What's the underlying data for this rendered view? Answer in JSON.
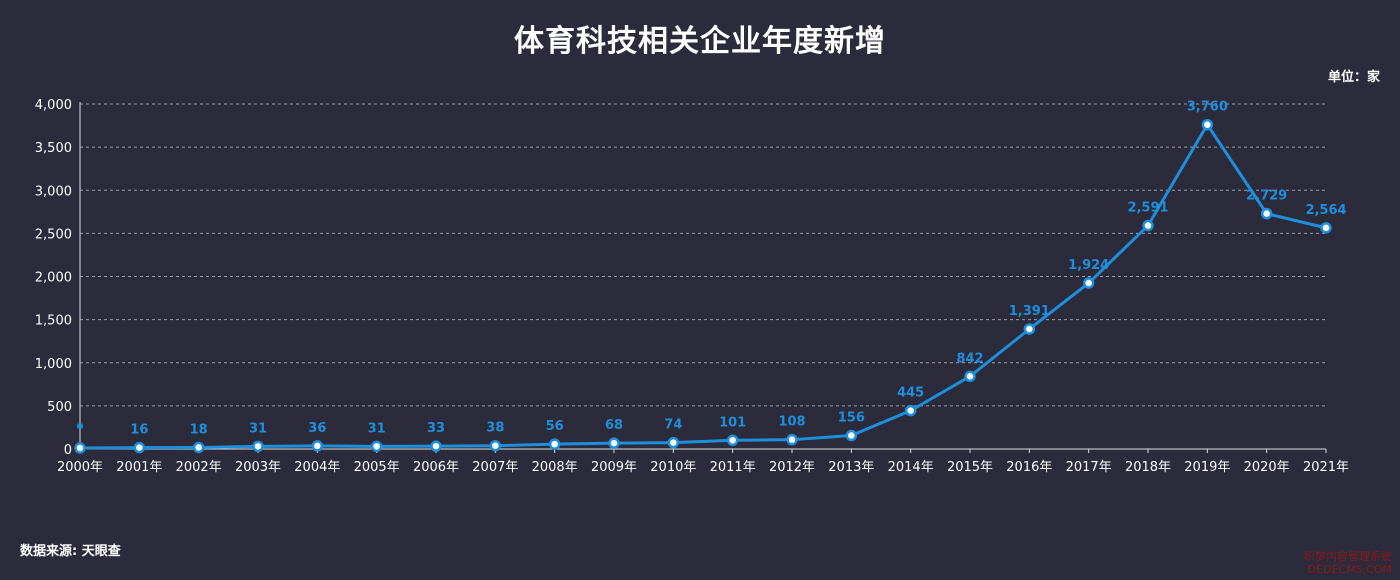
{
  "title": "体育科技相关企业年度新增",
  "unit": "单位：家",
  "source": "数据来源: 天眼查",
  "watermark": {
    "line1": "织梦内容管理系统",
    "line2": "DEDECMS.COM"
  },
  "colors": {
    "background": "#2b2b3b",
    "line": "#1e8fdc",
    "text": "#ffffff",
    "grid": "#cfcfcf"
  },
  "chart_data": {
    "type": "line",
    "title": "体育科技相关企业年度新增",
    "xlabel": "",
    "ylabel": "",
    "ylim": [
      0,
      4000
    ],
    "yticks": [
      "0",
      "500",
      "1,000",
      "1,500",
      "2,000",
      "2,500",
      "3,000",
      "3,500",
      "4,000"
    ],
    "grid": true,
    "categories": [
      "2000年",
      "2001年",
      "2002年",
      "2003年",
      "2004年",
      "2005年",
      "2006年",
      "2007年",
      "2008年",
      "2009年",
      "2010年",
      "2011年",
      "2012年",
      "2013年",
      "2014年",
      "2015年",
      "2016年",
      "2017年",
      "2018年",
      "2019年",
      "2020年",
      "2021年"
    ],
    "values": [
      11,
      16,
      18,
      31,
      36,
      31,
      33,
      38,
      56,
      68,
      74,
      101,
      108,
      156,
      445,
      842,
      1391,
      1924,
      2591,
      3760,
      2729,
      2564
    ],
    "labels": [
      "",
      "16",
      "18",
      "31",
      "36",
      "31",
      "33",
      "38",
      "56",
      "68",
      "74",
      "101",
      "108",
      "156",
      "445",
      "842",
      "1,391",
      "1,924",
      "2,591",
      "3,760",
      "2,729",
      "2,564"
    ]
  }
}
